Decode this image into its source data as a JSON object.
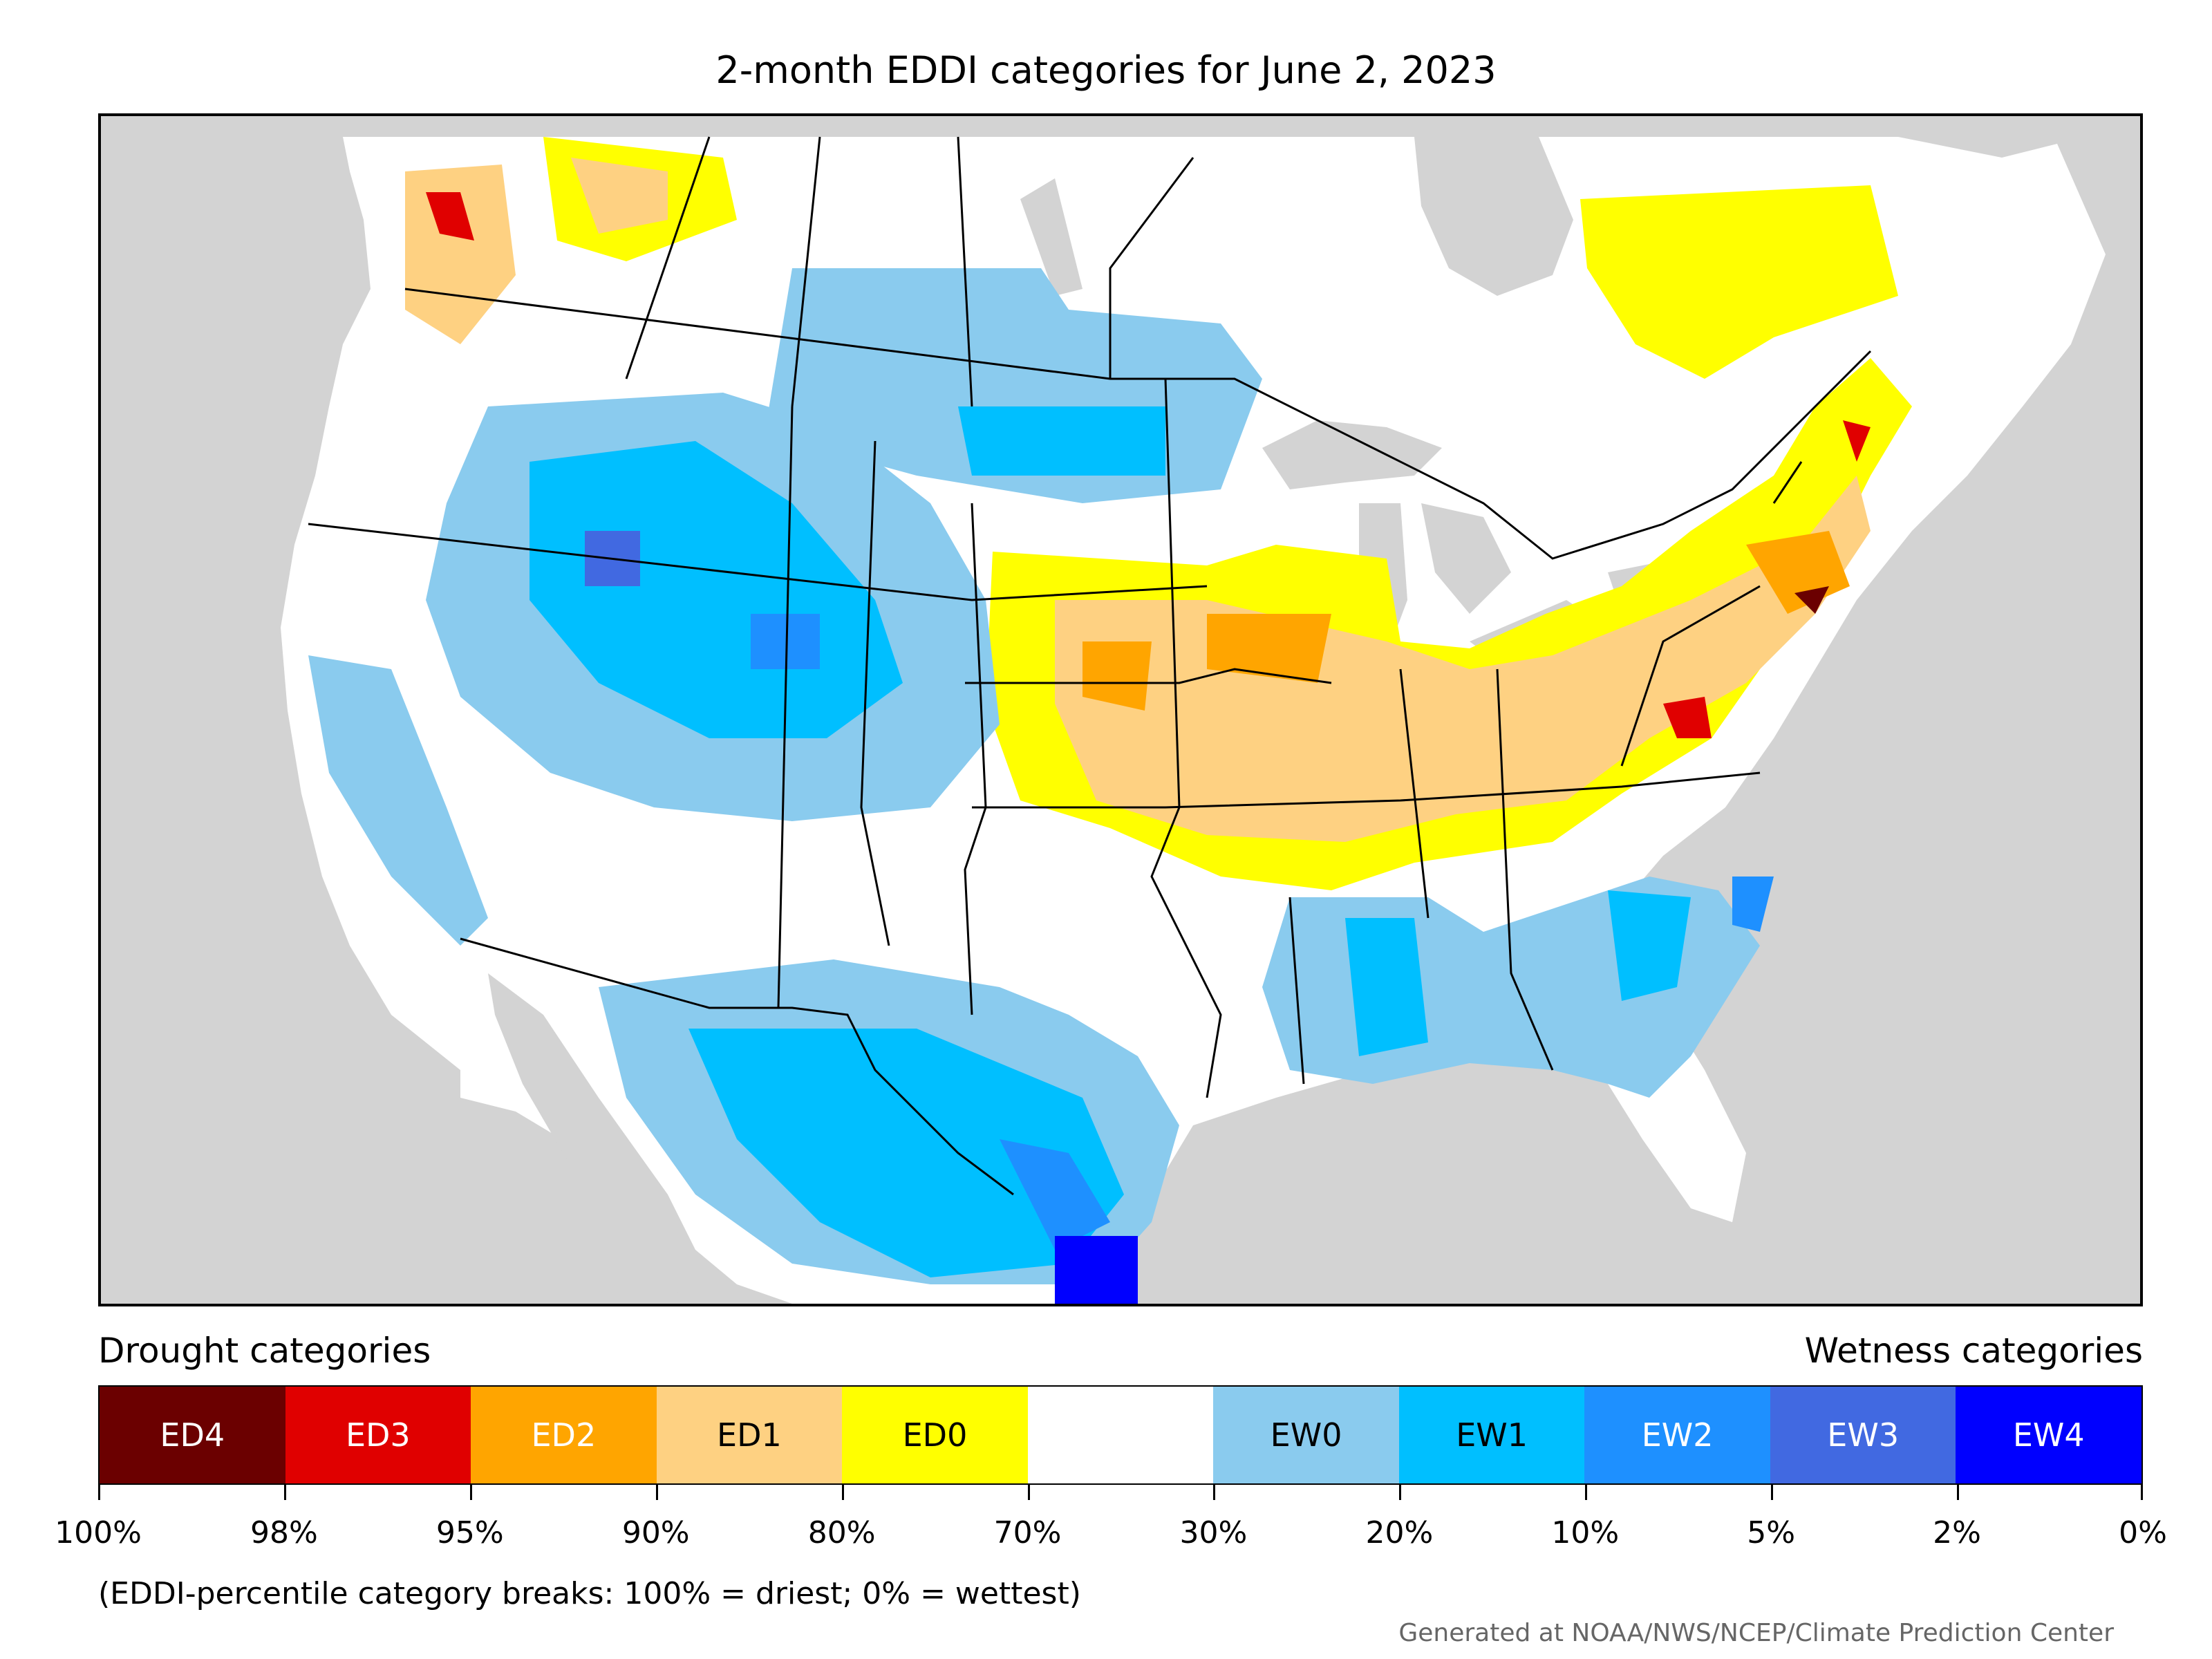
{
  "title": "2-month EDDI categories for June 2, 2023",
  "legend": {
    "drought_heading": "Drought categories",
    "wetness_heading": "Wetness categories",
    "categories": [
      {
        "label": "ED4",
        "color": "#6b0000",
        "text_color": "light"
      },
      {
        "label": "ED3",
        "color": "#e00000",
        "text_color": "light"
      },
      {
        "label": "ED2",
        "color": "#ffa500",
        "text_color": "light"
      },
      {
        "label": "ED1",
        "color": "#fed182",
        "text_color": "dark"
      },
      {
        "label": "ED0",
        "color": "#ffff00",
        "text_color": "dark"
      },
      {
        "label": "",
        "color": "#ffffff",
        "text_color": "dark"
      },
      {
        "label": "EW0",
        "color": "#8acbee",
        "text_color": "dark"
      },
      {
        "label": "EW1",
        "color": "#00bfff",
        "text_color": "dark"
      },
      {
        "label": "EW2",
        "color": "#1e90ff",
        "text_color": "light"
      },
      {
        "label": "EW3",
        "color": "#4169e1",
        "text_color": "light"
      },
      {
        "label": "EW4",
        "color": "#0000ff",
        "text_color": "light"
      }
    ],
    "breaks": [
      "100%",
      "98%",
      "95%",
      "90%",
      "80%",
      "70%",
      "30%",
      "20%",
      "10%",
      "5%",
      "2%",
      "0%"
    ],
    "note": "(EDDI-percentile category breaks: 100% = driest; 0% = wettest)"
  },
  "credit": "Generated at NOAA/NWS/NCEP/Climate Prediction Center",
  "map": {
    "background_color": "#d3d3d3",
    "land_color": "#ffffff"
  }
}
